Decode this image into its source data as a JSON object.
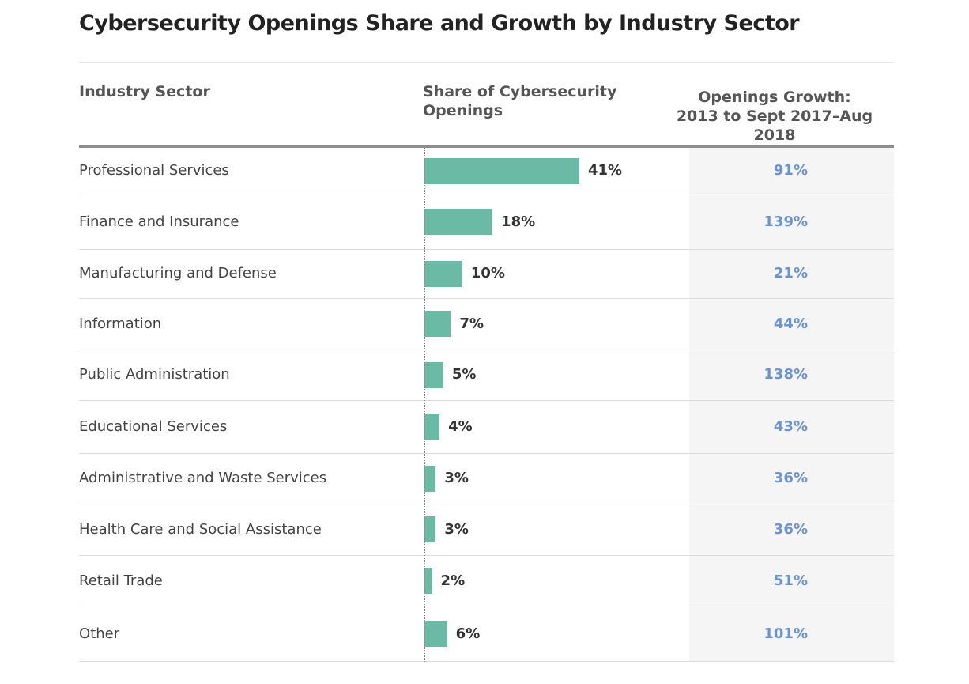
{
  "chart_data": {
    "type": "table",
    "title": "Cybersecurity Openings Share and Growth by Industry Sector",
    "columns": {
      "sector": "Industry Sector",
      "share": "Share of Cybersecurity Openings",
      "growth": "Openings Growth: 2013 to Sept 2017–Aug 2018"
    },
    "columns_lines": {
      "share": [
        "Share of Cybersecurity",
        "Openings"
      ],
      "growth": [
        "Openings Growth:",
        "2013 to Sept 2017–Aug 2018"
      ]
    },
    "bar_series": "share",
    "bar_scale_max": 41,
    "rows": [
      {
        "sector": "Professional Services",
        "share": 41,
        "share_label": "41%",
        "growth": 91,
        "growth_label": "91%"
      },
      {
        "sector": "Finance and Insurance",
        "share": 18,
        "share_label": "18%",
        "growth": 139,
        "growth_label": "139%"
      },
      {
        "sector": "Manufacturing and Defense",
        "share": 10,
        "share_label": "10%",
        "growth": 21,
        "growth_label": "21%"
      },
      {
        "sector": "Information",
        "share": 7,
        "share_label": "7%",
        "growth": 44,
        "growth_label": "44%"
      },
      {
        "sector": "Public Administration",
        "share": 5,
        "share_label": "5%",
        "growth": 138,
        "growth_label": "138%"
      },
      {
        "sector": "Educational Services",
        "share": 4,
        "share_label": "4%",
        "growth": 43,
        "growth_label": "43%"
      },
      {
        "sector": "Administrative and Waste Services",
        "share": 3,
        "share_label": "3%",
        "growth": 36,
        "growth_label": "36%"
      },
      {
        "sector": "Health Care and Social Assistance",
        "share": 3,
        "share_label": "3%",
        "growth": 36,
        "growth_label": "36%"
      },
      {
        "sector": "Retail Trade",
        "share": 2,
        "share_label": "2%",
        "growth": 51,
        "growth_label": "51%"
      },
      {
        "sector": "Other",
        "share": 6,
        "share_label": "6%",
        "growth": 101,
        "growth_label": "101%"
      }
    ],
    "colors": {
      "bar": "#6bbaa5",
      "growth_text": "#6b93cf",
      "growth_column_bg": "#f5f5f5"
    }
  }
}
